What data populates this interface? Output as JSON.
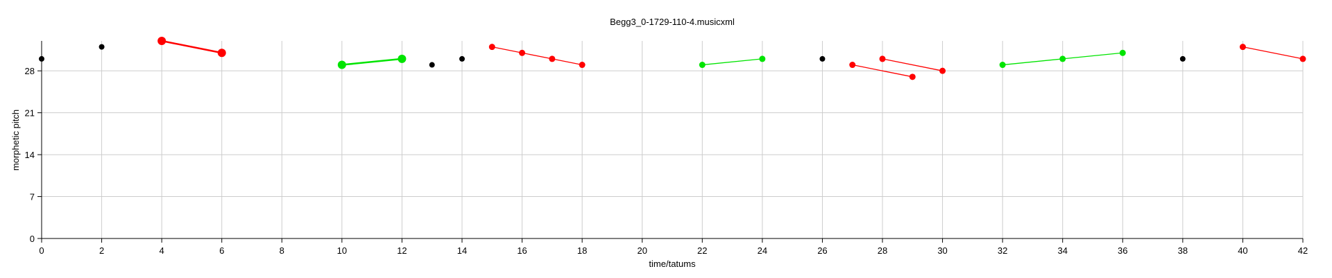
{
  "chart_data": {
    "type": "scatter",
    "title": "Begg3_0-1729-110-4.musicxml",
    "xlabel": "time/tatums",
    "ylabel": "morphetic pitch",
    "xlim": [
      0,
      42
    ],
    "ylim": [
      0,
      33
    ],
    "xticks": [
      0,
      2,
      4,
      6,
      8,
      10,
      12,
      14,
      16,
      18,
      20,
      22,
      24,
      26,
      28,
      30,
      32,
      34,
      36,
      38,
      40,
      42
    ],
    "yticks": [
      0,
      7,
      14,
      21,
      28
    ],
    "grid": true,
    "colors": {
      "red": "#ff0000",
      "green": "#00e400",
      "black": "#000000"
    },
    "points": [
      {
        "x": 0,
        "y": 30,
        "color": "black"
      },
      {
        "x": 2,
        "y": 32,
        "color": "black"
      },
      {
        "x": 13,
        "y": 29,
        "color": "black"
      },
      {
        "x": 14,
        "y": 30,
        "color": "black"
      },
      {
        "x": 26,
        "y": 30,
        "color": "black"
      },
      {
        "x": 38,
        "y": 30,
        "color": "black"
      }
    ],
    "series": [
      {
        "color": "red",
        "emphasis": true,
        "points": [
          [
            4,
            33
          ],
          [
            6,
            31
          ]
        ]
      },
      {
        "color": "green",
        "emphasis": true,
        "points": [
          [
            10,
            29
          ],
          [
            12,
            30
          ]
        ]
      },
      {
        "color": "red",
        "emphasis": false,
        "points": [
          [
            15,
            32
          ],
          [
            16,
            31
          ],
          [
            17,
            30
          ],
          [
            18,
            29
          ]
        ]
      },
      {
        "color": "green",
        "emphasis": false,
        "points": [
          [
            22,
            29
          ],
          [
            24,
            30
          ]
        ]
      },
      {
        "color": "red",
        "emphasis": false,
        "points": [
          [
            27,
            29
          ],
          [
            29,
            27
          ]
        ]
      },
      {
        "color": "red",
        "emphasis": false,
        "points": [
          [
            28,
            30
          ],
          [
            30,
            28
          ]
        ]
      },
      {
        "color": "green",
        "emphasis": false,
        "points": [
          [
            32,
            29
          ],
          [
            34,
            30
          ],
          [
            36,
            31
          ]
        ]
      },
      {
        "color": "red",
        "emphasis": false,
        "points": [
          [
            40,
            32
          ],
          [
            42,
            30
          ]
        ]
      }
    ]
  }
}
